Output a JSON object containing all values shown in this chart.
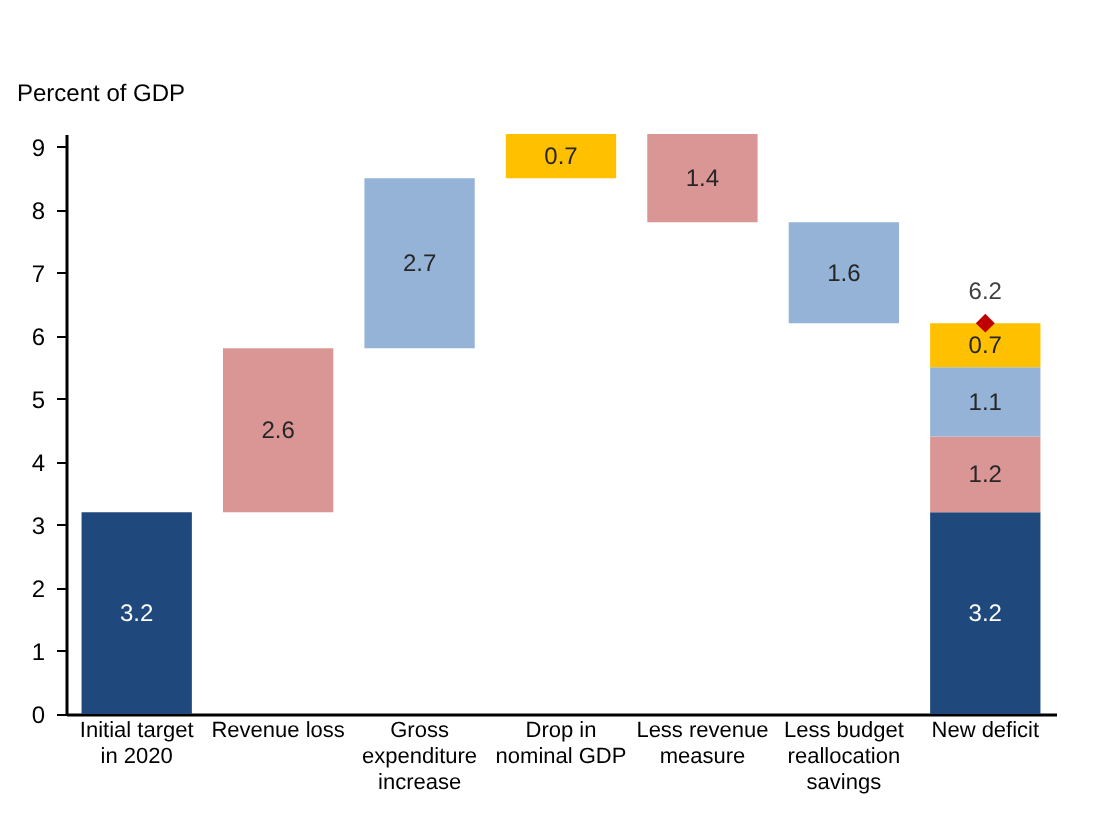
{
  "chart_data": {
    "type": "bar",
    "stacked": true,
    "ylabel": "Percent of GDP",
    "categories": [
      "Initial target in 2020",
      "Revenue loss",
      "Gross expenditure increase",
      "Drop in nominal GDP",
      "Less revenue measure",
      "Less budget reallocation savings",
      "New deficit"
    ],
    "series": [
      {
        "color": "#1f497d",
        "values": [
          3.2,
          null,
          null,
          null,
          null,
          null,
          3.2
        ],
        "base": [
          0,
          null,
          null,
          null,
          null,
          null,
          0
        ]
      },
      {
        "color": "#da9694",
        "values": [
          null,
          2.6,
          null,
          null,
          1.4,
          null,
          1.2
        ],
        "base": [
          null,
          3.2,
          null,
          null,
          7.8,
          null,
          3.2
        ]
      },
      {
        "color": "#95b3d7",
        "values": [
          null,
          null,
          2.7,
          null,
          null,
          1.6,
          1.1
        ],
        "base": [
          null,
          null,
          5.8,
          null,
          null,
          6.2,
          4.4
        ]
      },
      {
        "color": "#ffc000",
        "values": [
          null,
          null,
          null,
          0.7,
          null,
          null,
          0.7
        ],
        "base": [
          null,
          null,
          null,
          8.5,
          null,
          null,
          5.5
        ]
      },
      {
        "type": "scatter",
        "color": "#c00000",
        "marker": "diamond",
        "x": [
          "New deficit"
        ],
        "values": [
          6.2
        ]
      }
    ],
    "data_labels": true,
    "ylim": [
      0,
      9.2
    ],
    "yticks": [
      0,
      1,
      2,
      3,
      4,
      5,
      6,
      7,
      8,
      9
    ],
    "grid": false,
    "legend": false
  }
}
